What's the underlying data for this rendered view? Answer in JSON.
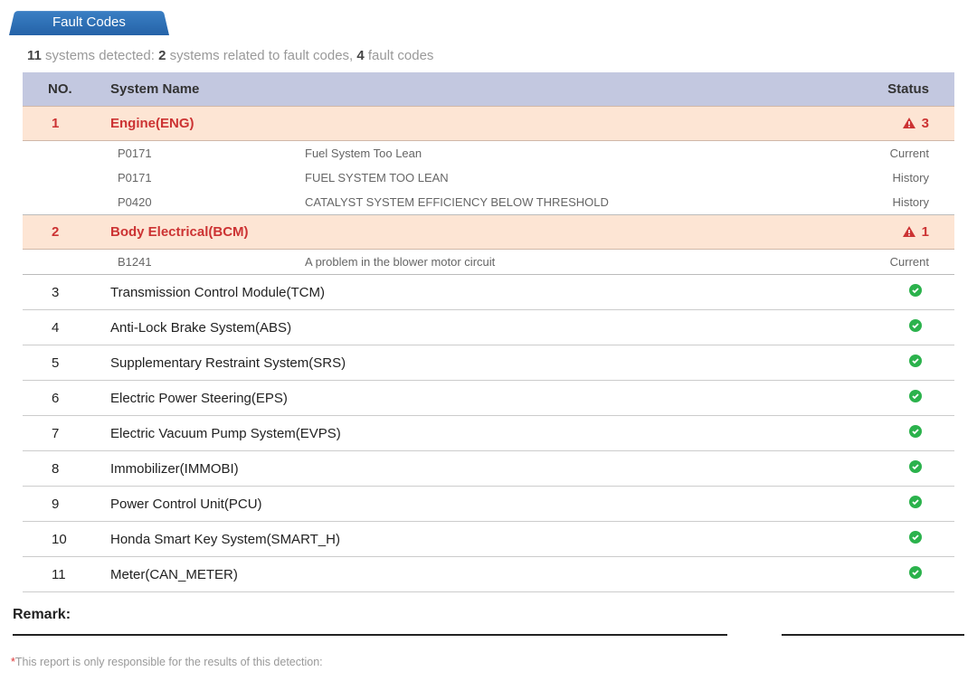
{
  "tab_label": "Fault Codes",
  "summary": {
    "systems_count": "11",
    "text1": " systems detected: ",
    "fault_systems_count": "2",
    "text2": " systems related to fault codes, ",
    "fault_codes_count": "4",
    "text3": " fault codes"
  },
  "headers": {
    "no": "NO.",
    "name": "System Name",
    "status": "Status"
  },
  "colors": {
    "tab_bg_top": "#3a7fc4",
    "tab_bg_bottom": "#2563a8",
    "header_bg": "#c3c8e0",
    "fault_bg": "#fde5d4",
    "fault_text": "#c33",
    "ok_icon": "#2bb24c",
    "warn_icon": "#c33"
  },
  "systems": [
    {
      "no": "1",
      "name": "Engine(ENG)",
      "has_fault": true,
      "fault_count": "3",
      "codes": [
        {
          "code": "P0171",
          "desc": "Fuel System Too Lean",
          "state": "Current"
        },
        {
          "code": "P0171",
          "desc": "FUEL SYSTEM TOO LEAN",
          "state": "History"
        },
        {
          "code": "P0420",
          "desc": "CATALYST SYSTEM EFFICIENCY BELOW THRESHOLD",
          "state": "History"
        }
      ]
    },
    {
      "no": "2",
      "name": "Body Electrical(BCM)",
      "has_fault": true,
      "fault_count": "1",
      "codes": [
        {
          "code": "B1241",
          "desc": "A problem in the blower motor circuit",
          "state": "Current"
        }
      ]
    },
    {
      "no": "3",
      "name": "Transmission Control Module(TCM)",
      "has_fault": false
    },
    {
      "no": "4",
      "name": "Anti-Lock Brake System(ABS)",
      "has_fault": false
    },
    {
      "no": "5",
      "name": "Supplementary Restraint System(SRS)",
      "has_fault": false
    },
    {
      "no": "6",
      "name": "Electric Power Steering(EPS)",
      "has_fault": false
    },
    {
      "no": "7",
      "name": "Electric Vacuum Pump System(EVPS)",
      "has_fault": false
    },
    {
      "no": "8",
      "name": "Immobilizer(IMMOBI)",
      "has_fault": false
    },
    {
      "no": "9",
      "name": "Power Control Unit(PCU)",
      "has_fault": false
    },
    {
      "no": "10",
      "name": "Honda Smart Key System(SMART_H)",
      "has_fault": false
    },
    {
      "no": "11",
      "name": "Meter(CAN_METER)",
      "has_fault": false
    }
  ],
  "remark_label": "Remark:",
  "footnote": "This report is only responsible for the results of this detection:"
}
